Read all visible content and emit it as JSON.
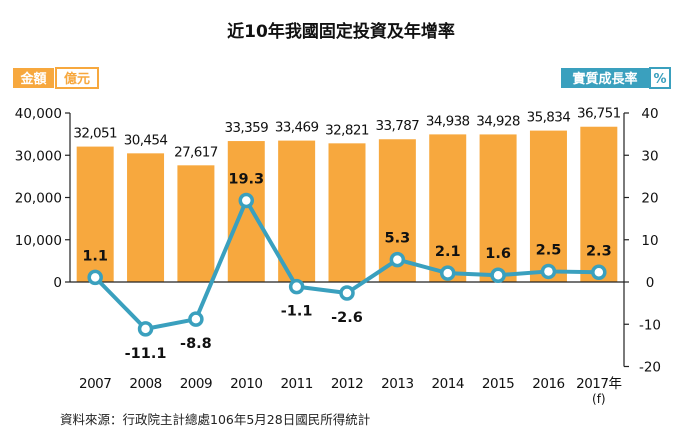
{
  "chart_data": {
    "type": "bar+line",
    "title": "近10年我國固定投資及年增率",
    "left_axis": {
      "label_main": "金額",
      "label_unit": "億元",
      "ylim": [
        0,
        40000
      ],
      "ticks": [
        0,
        10000,
        20000,
        30000,
        40000
      ],
      "tick_labels": [
        "0",
        "10,000",
        "20,000",
        "30,000",
        "40,000"
      ]
    },
    "right_axis": {
      "label_main": "實質成長率",
      "label_unit": "%",
      "ylim": [
        -20,
        40
      ],
      "ticks": [
        -20,
        -10,
        0,
        10,
        20,
        30,
        40
      ],
      "tick_labels": [
        "-20",
        "-10",
        "0",
        "10",
        "20",
        "30",
        "40"
      ]
    },
    "categories": [
      "2007",
      "2008",
      "2009",
      "2010",
      "2011",
      "2012",
      "2013",
      "2014",
      "2015",
      "2016",
      "2017年"
    ],
    "category_notes": [
      "",
      "",
      "",
      "",
      "",
      "",
      "",
      "",
      "",
      "",
      "(f)"
    ],
    "bar_values": [
      32051,
      30454,
      27617,
      33359,
      33469,
      32821,
      33787,
      34938,
      34928,
      35834,
      36751
    ],
    "bar_labels": [
      "32,051",
      "30,454",
      "27,617",
      "33,359",
      "33,469",
      "32,821",
      "33,787",
      "34,938",
      "34,928",
      "35,834",
      "36,751"
    ],
    "line_values": [
      1.1,
      -11.1,
      -8.8,
      19.3,
      -1.1,
      -2.6,
      5.3,
      2.1,
      1.6,
      2.5,
      2.3
    ],
    "line_labels": [
      "1.1",
      "-11.1",
      "-8.8",
      "19.3",
      "-1.1",
      "-2.6",
      "5.3",
      "2.1",
      "1.6",
      "2.5",
      "2.3"
    ],
    "colors": {
      "bar": "#F7A83E",
      "line": "#3AA0BE",
      "left_axis_accent": "#F7A83E",
      "right_axis_accent": "#3AA0BE"
    },
    "grid": false,
    "source": "資料來源：行政院主計總處106年5月28日國民所得統計"
  }
}
